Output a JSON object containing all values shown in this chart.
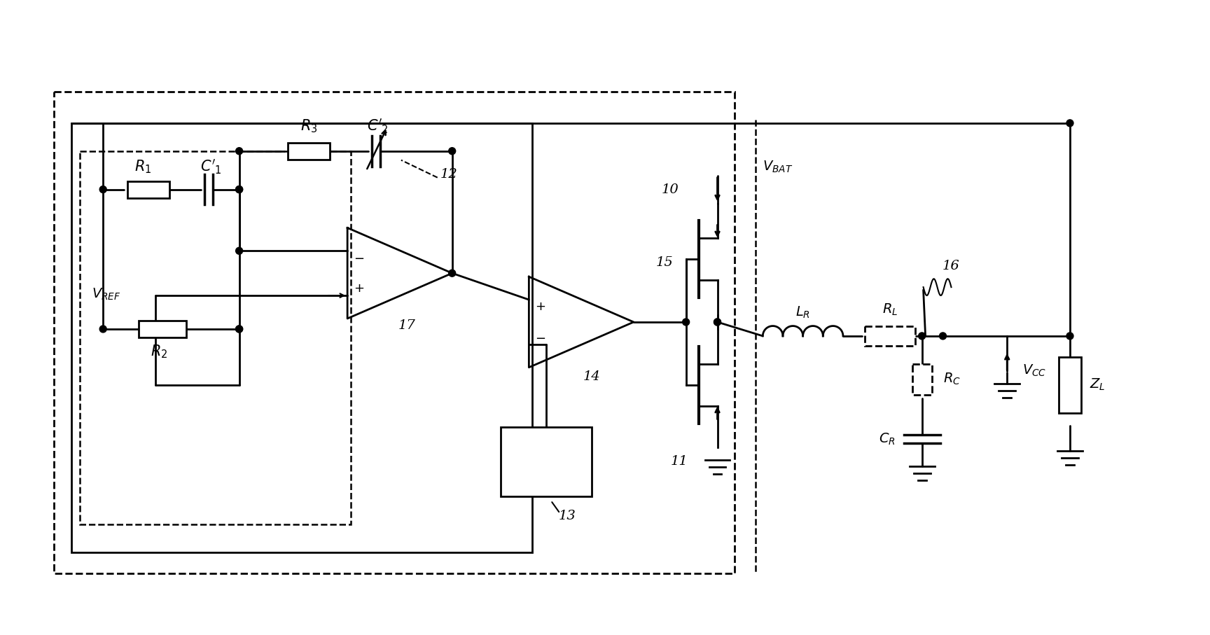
{
  "bg_color": "#ffffff",
  "line_color": "#000000",
  "figsize": [
    17.28,
    9.07
  ],
  "dpi": 100
}
